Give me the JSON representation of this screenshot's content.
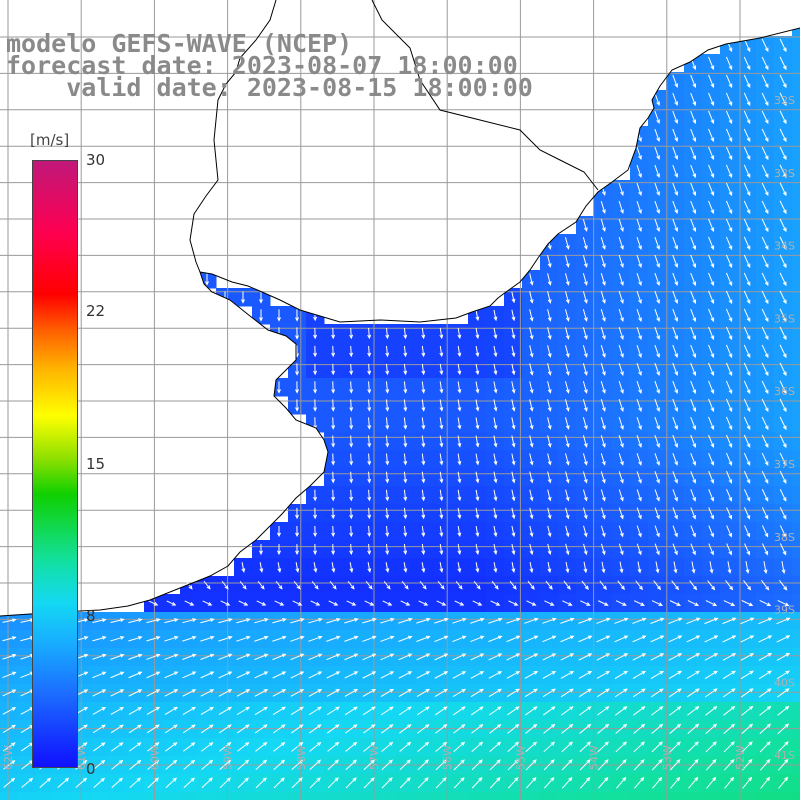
{
  "titles": {
    "line1": "modelo GEFS-WAVE (NCEP)",
    "line2": "forecast date: 2023-08-07 18:00:00",
    "line3": "valid date: 2023-08-15 18:00:00"
  },
  "colorbar": {
    "unit": "[m/s]",
    "ticks": [
      "30",
      "22",
      "15",
      "8",
      "0"
    ],
    "colors": [
      "#1010ff",
      "#18aaff",
      "#14d8f4",
      "#10d000",
      "#ffff00",
      "#ff6000",
      "#ff0000",
      "#c0187a"
    ]
  },
  "map": {
    "ocean_color": "#2a5cff",
    "land_color": "#ffffff",
    "grid_color": "#9a9a9a",
    "lat_labels": [
      "32S",
      "33S",
      "34S",
      "35S",
      "36S",
      "37S",
      "38S",
      "39S",
      "40S",
      "41S"
    ],
    "lon_labels": [
      "62W",
      "61W",
      "60W",
      "59W",
      "58W",
      "57W",
      "56W",
      "55W",
      "54W",
      "53W",
      "52W"
    ],
    "wind_field": "north-east to south flow north of 38S, easterly/southeasterly flow south of 39S"
  }
}
